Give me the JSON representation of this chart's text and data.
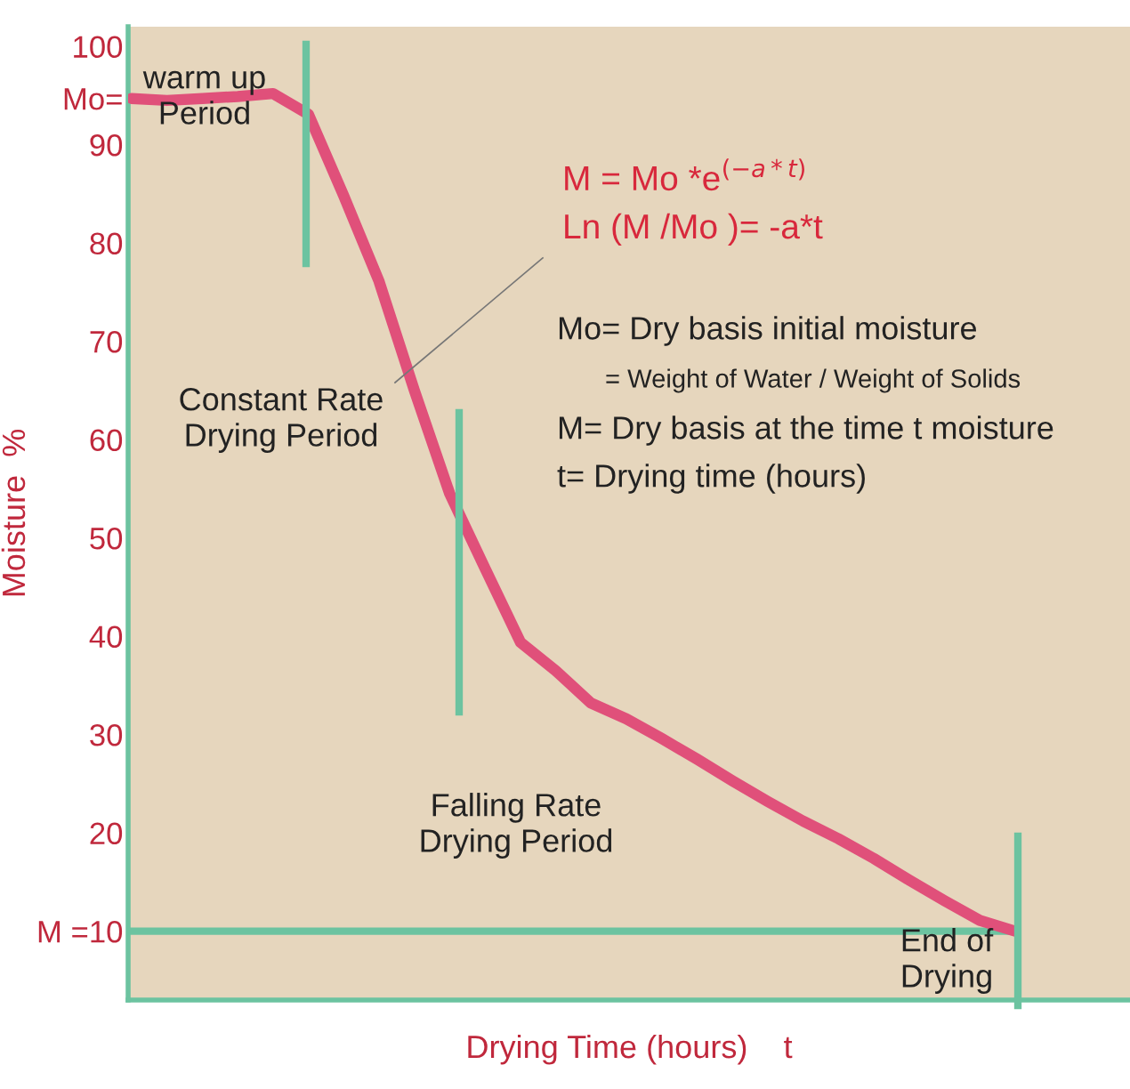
{
  "chart_data": {
    "type": "line",
    "categories": [
      null,
      null,
      null,
      null,
      null,
      null,
      null,
      null,
      null,
      null,
      null,
      null,
      null,
      null,
      null,
      null,
      null,
      null,
      null,
      null,
      null,
      null,
      null,
      null,
      null,
      null
    ],
    "series": [
      {
        "color": "#e0507a",
        "values": [
          94.7,
          94.5,
          94.7,
          94.9,
          95.2,
          93.1,
          84.8,
          76.1,
          65.0,
          54.5,
          46.9,
          39.4,
          36.5,
          33.2,
          31.6,
          29.6,
          27.5,
          25.3,
          23.2,
          21.2,
          19.4,
          17.4,
          15.2,
          13.1,
          11.1,
          10
        ]
      }
    ],
    "xlabel": "Drying Time (hours)    t",
    "ylabel": "Moisture  %",
    "ylim": [
      3,
      102
    ],
    "yticks": [
      {
        "value": 10,
        "label": "M =10"
      },
      20,
      30,
      40,
      50,
      60,
      70,
      80,
      90,
      {
        "value": 94.7,
        "label": "Mo="
      },
      100
    ],
    "tick_labels": "y",
    "grid": false,
    "ref_lines": [
      {
        "axis": "y",
        "value": 10,
        "color": "#6cc3a0"
      }
    ],
    "annotations": [
      "warm up\nPeriod",
      "Constant Rate\nDrying Period",
      "Falling Rate\nDrying Period",
      "End of\nDrying",
      "M = Mo *e$^{(−a*t)}$",
      "Ln (M /Mo )= -a*t",
      "Mo= Dry basis initial moisture",
      "= Weight of Water / Weight of Solids",
      "M= Dry basis at the time t moisture",
      "t= Drying time (hours)"
    ]
  }
}
